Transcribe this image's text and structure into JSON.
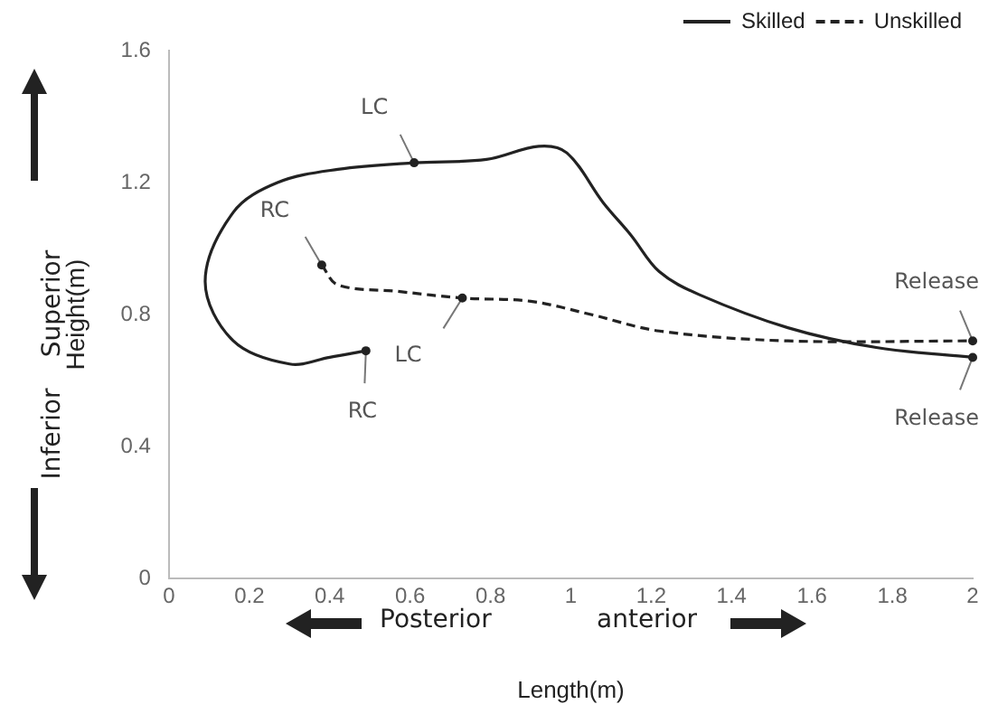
{
  "chart_data": {
    "type": "line",
    "xlabel": "Length(m)",
    "ylabel": "Height(m)",
    "xlim": [
      0,
      2
    ],
    "xticks": [
      0,
      0.2,
      0.4,
      0.6,
      0.8,
      1,
      1.2,
      1.4,
      1.6,
      1.8,
      2
    ],
    "ylim": [
      0,
      1.6
    ],
    "yticks": [
      0,
      0.4,
      0.8,
      1.2,
      1.6
    ],
    "grid": false,
    "legend": "top right",
    "marker": "none",
    "series": [
      {
        "name": "Skilled",
        "color": "#222222",
        "line_style": "solid",
        "x": [
          0.49,
          0.4,
          0.3,
          0.16,
          0.09,
          0.16,
          0.27,
          0.42,
          0.61,
          0.79,
          0.92,
          0.99,
          1.08,
          1.15,
          1.22,
          1.32,
          1.54,
          1.76,
          2.0
        ],
        "values": [
          0.69,
          0.67,
          0.65,
          0.72,
          0.9,
          1.11,
          1.2,
          1.24,
          1.26,
          1.27,
          1.31,
          1.29,
          1.14,
          1.04,
          0.93,
          0.86,
          0.76,
          0.7,
          0.67
        ]
      },
      {
        "name": "Unskilled",
        "color": "#222222",
        "line_style": "dashed",
        "x": [
          0.38,
          0.42,
          0.57,
          0.73,
          0.9,
          1.05,
          1.22,
          1.54,
          2.0
        ],
        "values": [
          0.95,
          0.89,
          0.87,
          0.85,
          0.84,
          0.8,
          0.75,
          0.72,
          0.72
        ]
      }
    ],
    "annotations": [
      {
        "text": "LC",
        "x": 0.61,
        "y": 1.26
      },
      {
        "text": "RC",
        "x": 0.49,
        "y": 0.69
      },
      {
        "text": "RC",
        "x": 0.38,
        "y": 0.95
      },
      {
        "text": "LC",
        "x": 0.73,
        "y": 0.85
      },
      {
        "text": "Release",
        "x": 2.0,
        "y": 0.72
      },
      {
        "text": "Release",
        "x": 2.0,
        "y": 0.67
      },
      "Superior",
      "Inferior",
      "Posterior",
      "anterior"
    ]
  }
}
